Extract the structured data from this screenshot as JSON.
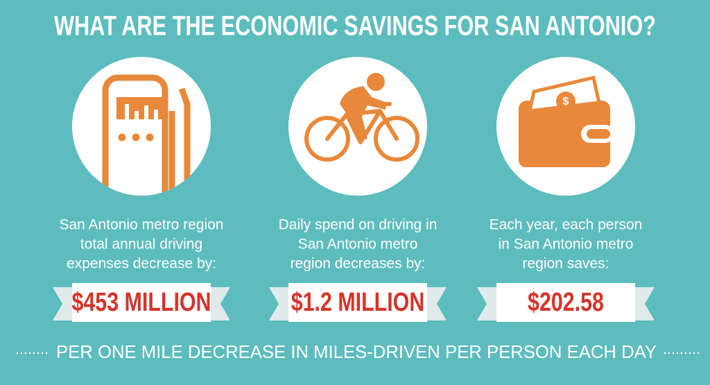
{
  "header": {
    "title": "WHAT ARE THE ECONOMIC SAVINGS FOR SAN ANTONIO?"
  },
  "items": [
    {
      "description": [
        "San Antonio metro region",
        "total annual driving",
        "expenses decrease by:"
      ],
      "value": "$453 MILLION"
    },
    {
      "description": [
        "Daily spend on driving in",
        "San Antonio metro",
        "region decreases by:"
      ],
      "value": "$1.2 MILLION"
    },
    {
      "description": [
        "Each year, each person",
        "in San Antonio metro",
        "region saves:"
      ],
      "value": "$202.58"
    }
  ],
  "footer": "PER ONE MILE DECREASE IN MILES-DRIVEN PER PERSON EACH DAY"
}
